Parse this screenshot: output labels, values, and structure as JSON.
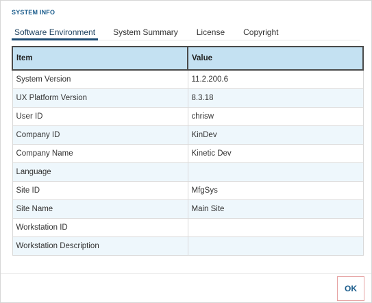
{
  "dialog": {
    "title": "SYSTEM INFO"
  },
  "tabs": [
    {
      "label": "Software Environment",
      "active": true
    },
    {
      "label": "System Summary",
      "active": false
    },
    {
      "label": "License",
      "active": false
    },
    {
      "label": "Copyright",
      "active": false
    }
  ],
  "table": {
    "headers": [
      "Item",
      "Value"
    ],
    "rows": [
      {
        "item": "System Version",
        "value": "11.2.200.6"
      },
      {
        "item": "UX Platform Version",
        "value": "8.3.18"
      },
      {
        "item": "User ID",
        "value": "chrisw"
      },
      {
        "item": "Company ID",
        "value": "KinDev"
      },
      {
        "item": "Company Name",
        "value": "Kinetic Dev"
      },
      {
        "item": "Language",
        "value": ""
      },
      {
        "item": "Site ID",
        "value": "MfgSys"
      },
      {
        "item": "Site Name",
        "value": "Main Site"
      },
      {
        "item": "Workstation ID",
        "value": ""
      },
      {
        "item": "Workstation Description",
        "value": ""
      }
    ]
  },
  "footer": {
    "ok_label": "OK"
  },
  "colors": {
    "accent": "#1a5c8c",
    "header_bg": "#c4e1f2",
    "row_alt": "#eef7fc"
  }
}
